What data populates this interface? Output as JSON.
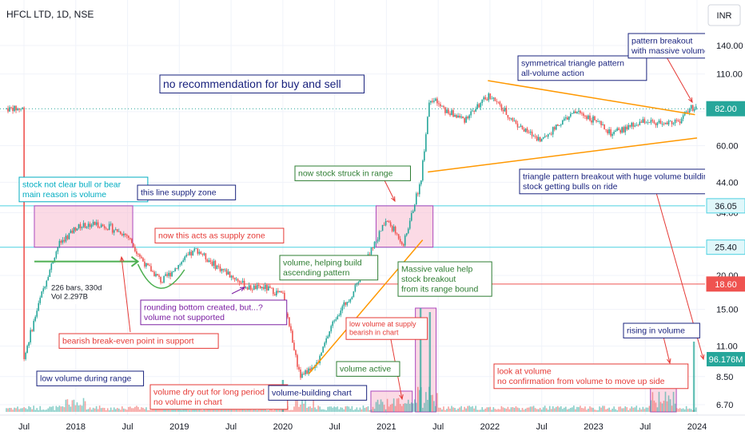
{
  "header": {
    "symbol_title": "HFCL LTD, 1D, NSE",
    "currency_button": "INR"
  },
  "colors": {
    "up": "#26a69a",
    "down": "#ef5350",
    "grid": "#f0f3fa",
    "supply_line": "#4dd0e1",
    "support_line": "#ef5350",
    "triangle": "#ff9800",
    "price_badge": "#26a69a",
    "vol_badge": "#26a69a",
    "box_fill": "#f8bbd0",
    "box_stroke": "#ab47bc"
  },
  "chart_data": {
    "type": "candlestick",
    "title": "HFCL LTD, 1D, NSE",
    "x_axis_ticks": [
      "Jul",
      "2018",
      "Jul",
      "2019",
      "Jul",
      "2020",
      "Jul",
      "2021",
      "Jul",
      "2022",
      "Jul",
      "2023",
      "Jul",
      "2024"
    ],
    "y_axis_ticks": [
      140.0,
      110.0,
      80.0,
      60.0,
      44.0,
      34.0,
      20.0,
      15.0,
      11.0,
      8.5,
      6.7
    ],
    "y_scale": "log",
    "price_labels": [
      {
        "value": 82.0,
        "kind": "last"
      },
      {
        "value": 36.05,
        "kind": "level"
      },
      {
        "value": 25.4,
        "kind": "level"
      },
      {
        "value": 18.6,
        "kind": "level"
      }
    ],
    "volume_label": "96.176M",
    "price_path": [
      [
        "2017-07",
        10
      ],
      [
        "2017-09",
        17
      ],
      [
        "2017-11",
        26
      ],
      [
        "2018-01",
        30
      ],
      [
        "2018-03",
        31
      ],
      [
        "2018-05",
        30
      ],
      [
        "2018-07",
        28
      ],
      [
        "2018-09",
        22
      ],
      [
        "2018-11",
        19
      ],
      [
        "2019-01",
        22
      ],
      [
        "2019-03",
        25
      ],
      [
        "2019-05",
        22
      ],
      [
        "2019-07",
        20
      ],
      [
        "2019-09",
        18
      ],
      [
        "2019-11",
        18
      ],
      [
        "2020-01",
        17
      ],
      [
        "2020-03",
        8.5
      ],
      [
        "2020-05",
        9.5
      ],
      [
        "2020-07",
        14
      ],
      [
        "2020-09",
        17
      ],
      [
        "2020-11",
        24
      ],
      [
        "2021-01",
        32
      ],
      [
        "2021-03",
        26
      ],
      [
        "2021-05",
        45
      ],
      [
        "2021-06",
        90
      ],
      [
        "2021-08",
        80
      ],
      [
        "2021-10",
        75
      ],
      [
        "2022-01",
        92
      ],
      [
        "2022-03",
        78
      ],
      [
        "2022-05",
        68
      ],
      [
        "2022-07",
        63
      ],
      [
        "2022-09",
        72
      ],
      [
        "2022-11",
        80
      ],
      [
        "2023-01",
        75
      ],
      [
        "2023-03",
        66
      ],
      [
        "2023-05",
        70
      ],
      [
        "2023-07",
        74
      ],
      [
        "2023-09",
        72
      ],
      [
        "2023-11",
        74
      ],
      [
        "2023-12",
        82
      ]
    ],
    "volume_spikes": [
      [
        "2021-03",
        "tall"
      ],
      [
        "2021-06",
        "tall"
      ],
      [
        "2023-12",
        "tall"
      ],
      [
        "2018-01",
        "medium"
      ],
      [
        "2020-03",
        "medium"
      ]
    ],
    "annotations": [
      {
        "id": "no-rec",
        "text": [
          "no recommendation for buy and sell"
        ]
      },
      {
        "id": "not-clear",
        "text": [
          "stock not clear bull or bear",
          "main reason is volume"
        ]
      },
      {
        "id": "supply-zone",
        "text": [
          "this line supply zone"
        ]
      },
      {
        "id": "acts-supply",
        "text": [
          "now this acts as supply zone"
        ]
      },
      {
        "id": "bars-info",
        "text": [
          "226 bars, 330d",
          "Vol 2.297B"
        ]
      },
      {
        "id": "rounding",
        "text": [
          "rounding bottom created, but...?",
          "volume not supported"
        ]
      },
      {
        "id": "break-even",
        "text": [
          "bearish break-even point in support"
        ]
      },
      {
        "id": "low-vol-range",
        "text": [
          "low volume during range"
        ]
      },
      {
        "id": "dry-out",
        "text": [
          "volume dry out for long period",
          "no volume in chart"
        ]
      },
      {
        "id": "vol-build-chart",
        "text": [
          "volume-building chart"
        ]
      },
      {
        "id": "vol-active",
        "text": [
          "volume active"
        ]
      },
      {
        "id": "vol-helping",
        "text": [
          "volume, helping build",
          "ascending pattern"
        ]
      },
      {
        "id": "struck-range",
        "text": [
          "now stock struck in range"
        ]
      },
      {
        "id": "massive-value",
        "text": [
          "Massive value help",
          "stock breakout",
          "from its range bound"
        ]
      },
      {
        "id": "low-vol-supply",
        "text": [
          "low volume at supply",
          "bearish in chart"
        ]
      },
      {
        "id": "sym-triangle",
        "text": [
          "symmetrical triangle pattern",
          "all-volume action"
        ]
      },
      {
        "id": "pattern-breakout",
        "text": [
          "pattern breakout",
          "with massive volume"
        ]
      },
      {
        "id": "triangle-breakout",
        "text": [
          "triangle pattern breakout with huge volume building",
          "stock getting bulls on ride"
        ]
      },
      {
        "id": "look-volume",
        "text": [
          "look at volume",
          "no confirmation from volume to move up side"
        ]
      },
      {
        "id": "rising-vol",
        "text": [
          "rising in volume"
        ]
      }
    ],
    "grid": true
  }
}
